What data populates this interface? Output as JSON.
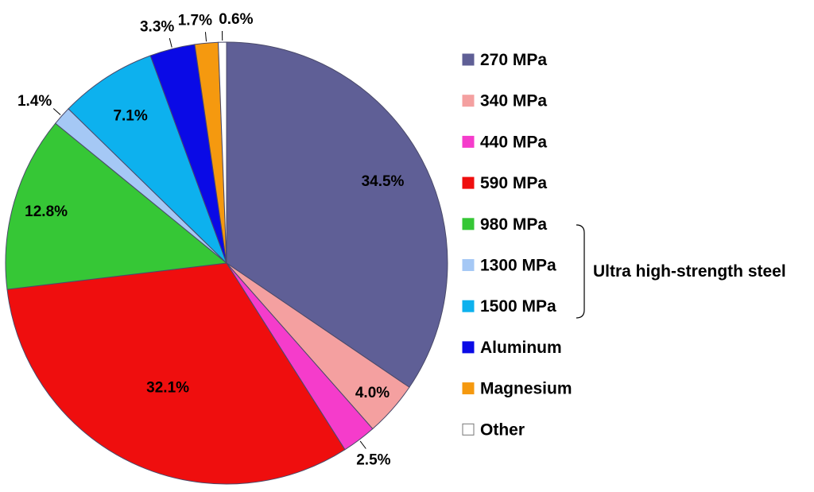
{
  "chart_data": {
    "type": "pie",
    "title": "",
    "slices": [
      {
        "label": "270 MPa",
        "value": 34.5,
        "display": "34.5%",
        "color": "#5f5f96"
      },
      {
        "label": "340 MPa",
        "value": 4.0,
        "display": "4.0%",
        "color": "#f4a0a0"
      },
      {
        "label": "440 MPa",
        "value": 2.5,
        "display": "2.5%",
        "color": "#f53ccb"
      },
      {
        "label": "590 MPa",
        "value": 32.1,
        "display": "32.1%",
        "color": "#ef0e0e"
      },
      {
        "label": "980 MPa",
        "value": 12.8,
        "display": "12.8%",
        "color": "#36c736"
      },
      {
        "label": "1300 MPa",
        "value": 1.4,
        "display": "1.4%",
        "color": "#a5c8f5"
      },
      {
        "label": "1500 MPa",
        "value": 7.1,
        "display": "7.1%",
        "color": "#0db1ee"
      },
      {
        "label": "Aluminum",
        "value": 3.3,
        "display": "3.3%",
        "color": "#0a0ae6"
      },
      {
        "label": "Magnesium",
        "value": 1.7,
        "display": "1.7%",
        "color": "#f5990f"
      },
      {
        "label": "Other",
        "value": 0.6,
        "display": "0.6%",
        "color": "#ffffff"
      }
    ],
    "legend_position": "right",
    "group_annotation": {
      "text": "Ultra high-strength steel",
      "members": [
        "980 MPa",
        "1300 MPa",
        "1500 MPa"
      ]
    }
  }
}
